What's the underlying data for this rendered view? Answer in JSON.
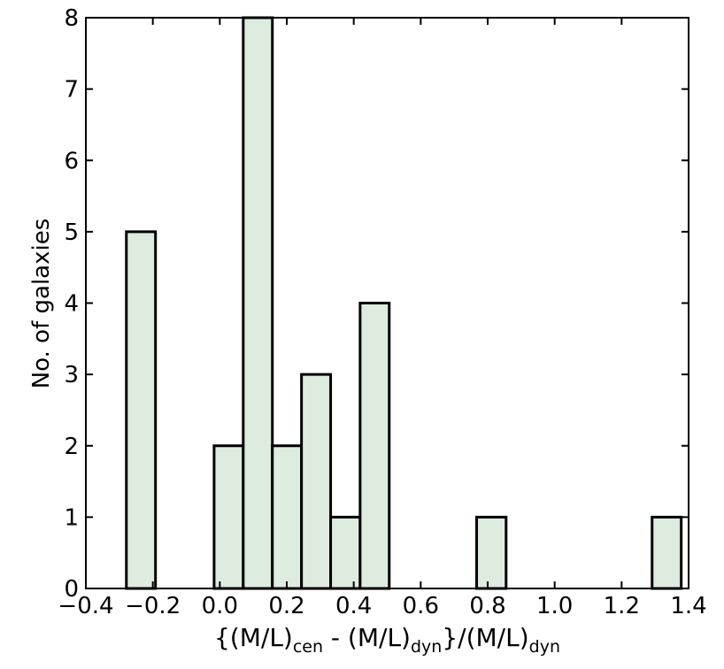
{
  "chart_data": {
    "type": "histogram",
    "bins": [
      -0.279,
      -0.192,
      -0.105,
      -0.017,
      0.07,
      0.157,
      0.244,
      0.331,
      0.419,
      0.506,
      0.593,
      0.68,
      0.767,
      0.855,
      0.942,
      1.029,
      1.116,
      1.203,
      1.291,
      1.378
    ],
    "values": [
      5,
      0,
      0,
      2,
      8,
      2,
      3,
      1,
      4,
      0,
      0,
      0,
      1,
      0,
      0,
      0,
      0,
      0,
      1
    ],
    "color": "#deecdf",
    "edgecolor": "#000000",
    "xlim": [
      -0.4,
      1.4
    ],
    "xticks": [
      {
        "value": -0.4,
        "label": "−0.4"
      },
      {
        "value": -0.2,
        "label": "−0.2"
      },
      {
        "value": 0,
        "label": "0.0"
      },
      0.2,
      0.4,
      0.6,
      0.8,
      {
        "value": 1.0,
        "label": "1.0"
      },
      1.2,
      1.4
    ],
    "ylim": [
      0,
      8
    ],
    "yticks": [
      0,
      1,
      2,
      3,
      4,
      5,
      6,
      7,
      8
    ],
    "ylabel": "No. of galaxies",
    "xlabel_parts": [
      "{(M/L)",
      "cen",
      " - (M/L)",
      "dyn",
      "}/(M/L)",
      "dyn"
    ]
  }
}
